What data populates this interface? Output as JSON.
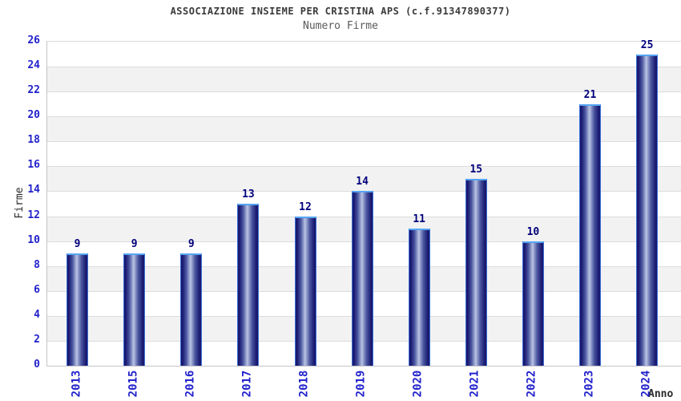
{
  "chart_data": {
    "type": "bar",
    "title": "ASSOCIAZIONE INSIEME PER CRISTINA APS (c.f.91347890377)",
    "subtitle": "Numero Firme",
    "xlabel": "Anno",
    "ylabel": "Firme",
    "categories": [
      "2013",
      "2015",
      "2016",
      "2017",
      "2018",
      "2019",
      "2020",
      "2021",
      "2022",
      "2023",
      "2024"
    ],
    "values": [
      9,
      9,
      9,
      13,
      12,
      14,
      11,
      15,
      10,
      21,
      25
    ],
    "ylim": [
      0,
      26
    ],
    "ytick_step": 2,
    "grid": "horizontal-bands-alternating",
    "legend": "none",
    "colors": {
      "tick_label": "#2222cc",
      "value_label": "#00007d",
      "bar_dark": "#191970",
      "bar_mid": "#4a56a0",
      "bar_light": "#bac3e3",
      "bar_top_border": "#55a4f2",
      "bar_side_border": "#3b6fd4",
      "band_gray": "#f2f2f2",
      "band_white": "#ffffff",
      "gridline": "#dcdcdc",
      "axis": "#c4c4c4",
      "title_color": "#3a3a3a",
      "subtitle_color": "#5a5a5a",
      "axis_label_color": "#2b2b2b"
    }
  }
}
